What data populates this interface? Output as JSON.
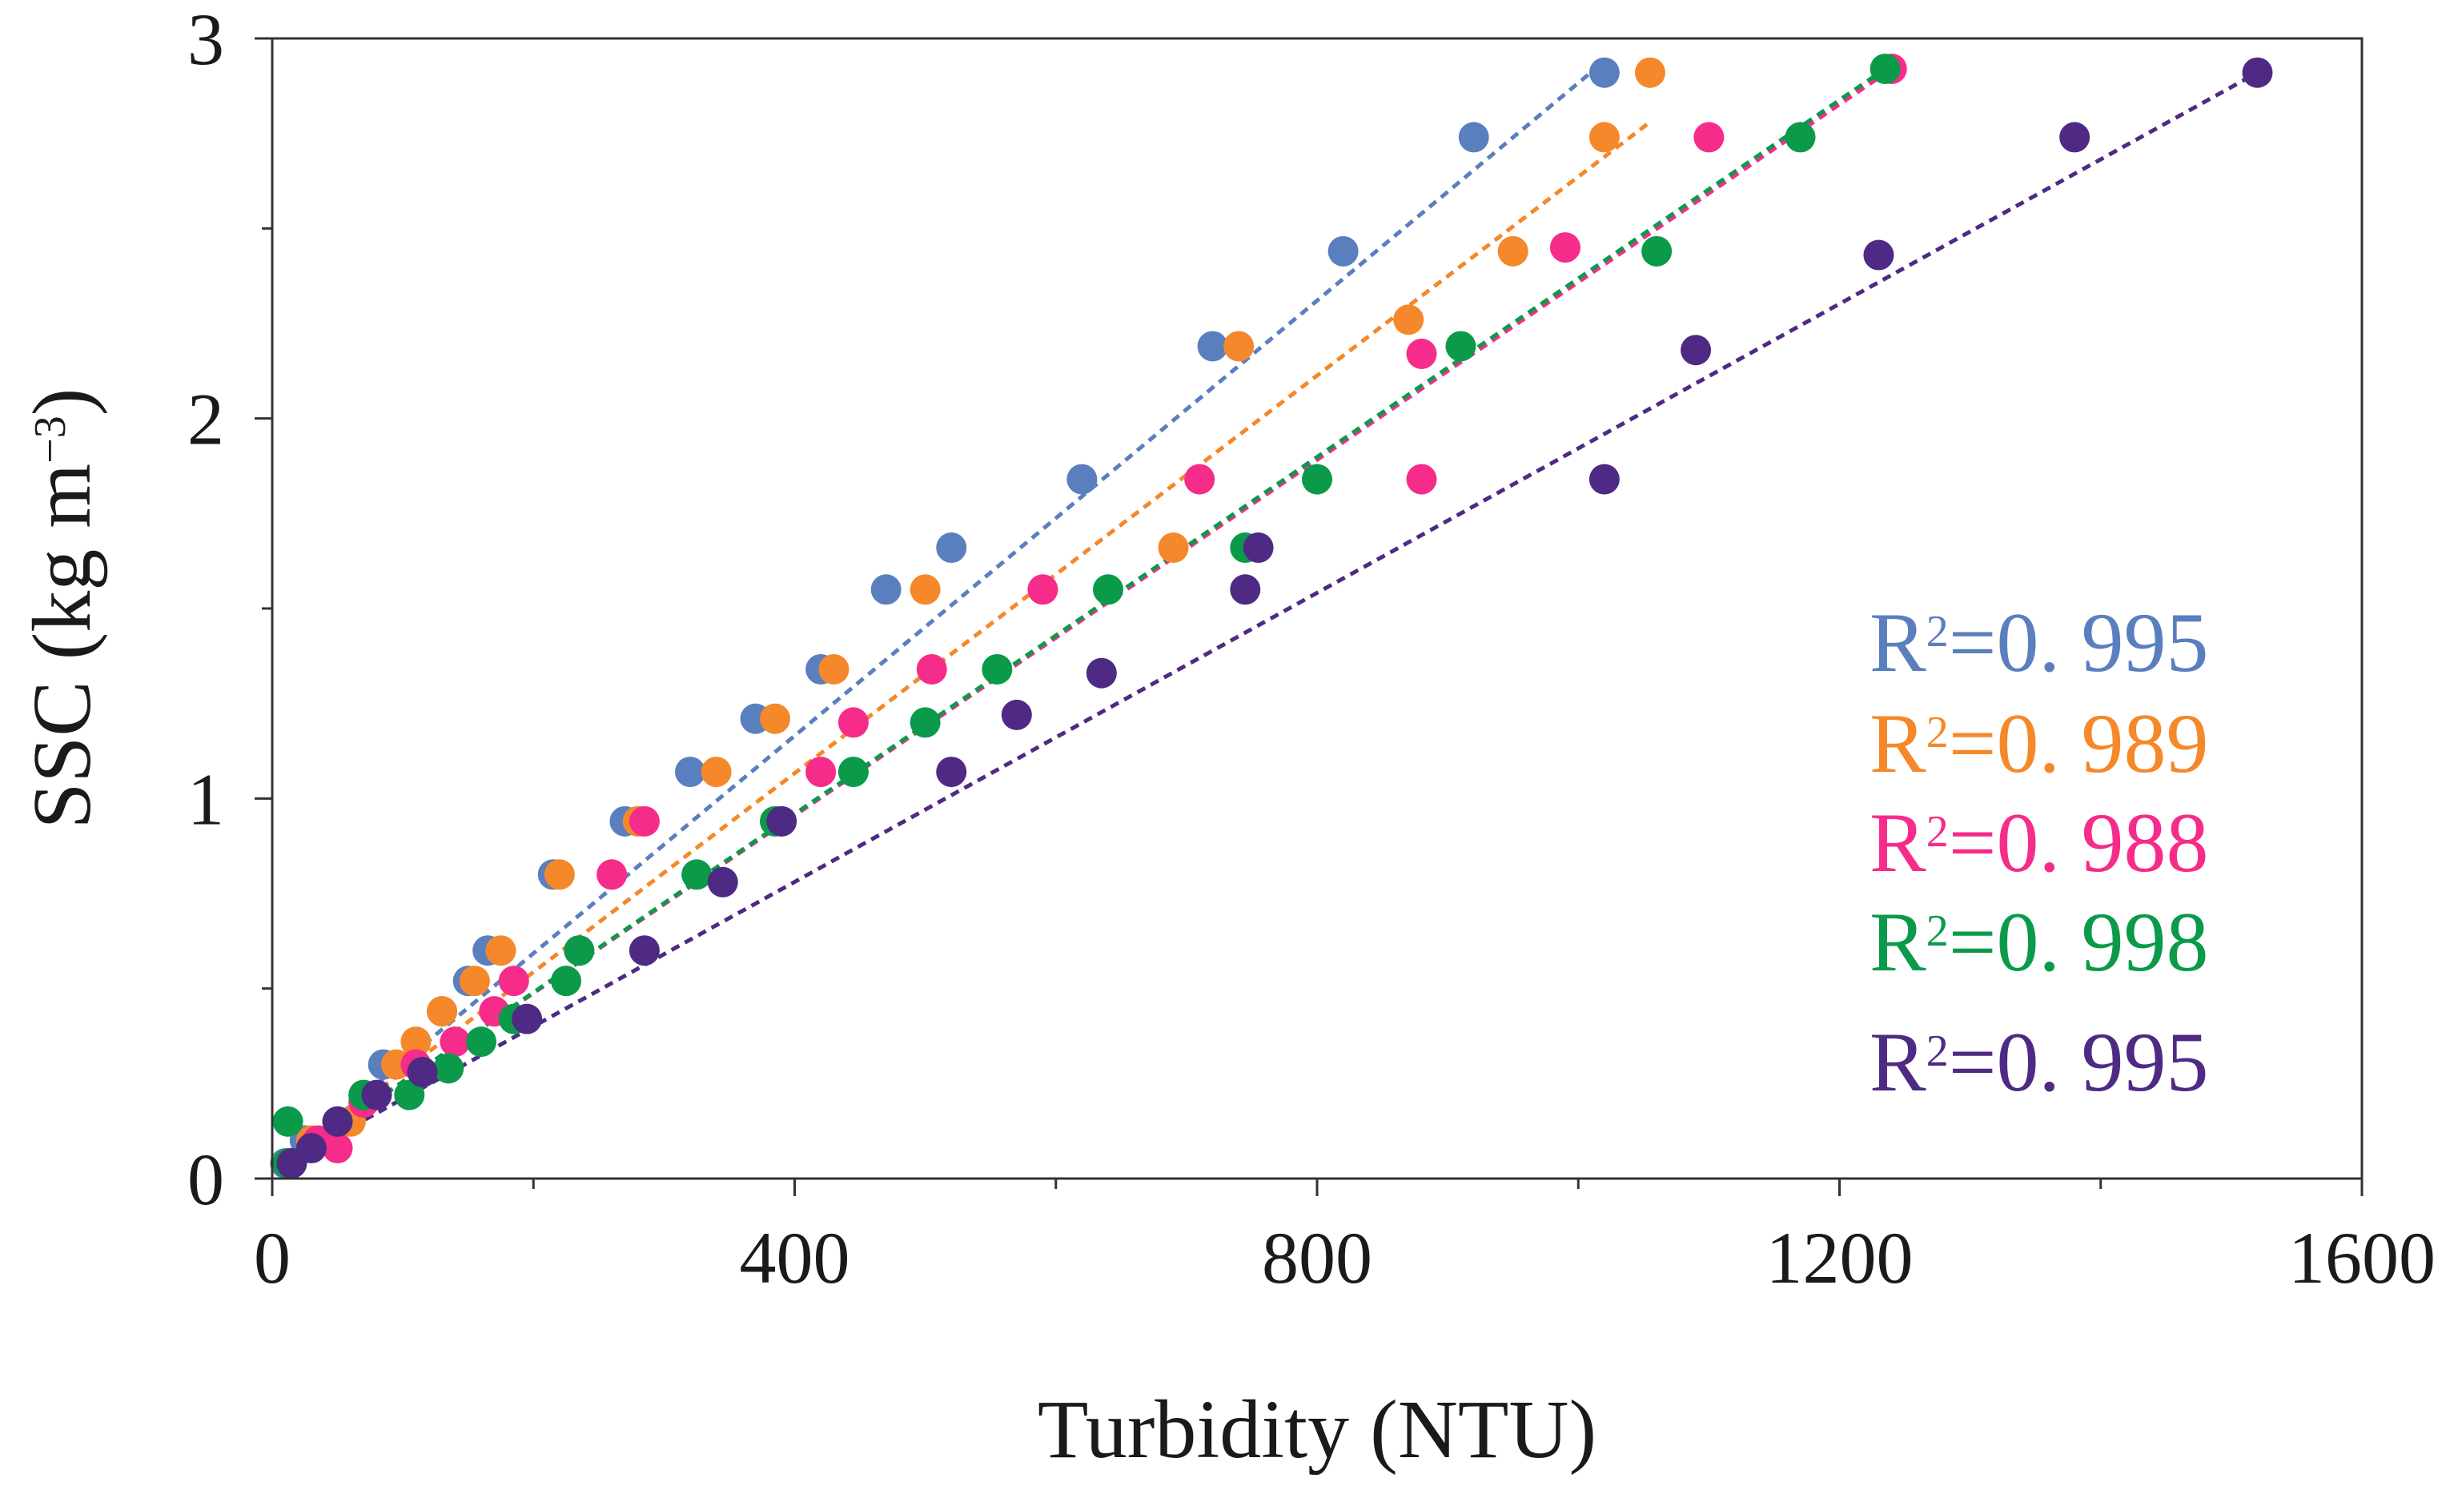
{
  "chart_data": {
    "type": "scatter",
    "title": "",
    "xlabel": "Turbidity (NTU)",
    "ylabel_main": "SSC (kg m",
    "ylabel_exp": "−3",
    "ylabel_close": ")",
    "xlim": [
      0,
      1600
    ],
    "ylim": [
      0,
      3
    ],
    "xticks": [
      0,
      400,
      800,
      1200,
      1600
    ],
    "xtick_labels": [
      "0",
      "400",
      "800",
      "1200",
      "1600"
    ],
    "xminor": [
      200,
      600,
      1000,
      1400
    ],
    "yticks": [
      0,
      1,
      2,
      3
    ],
    "ytick_labels": [
      "0",
      "1",
      "2",
      "3"
    ],
    "yminor": [
      0.5,
      1.5,
      2.5
    ],
    "grid": false,
    "legend_position": "right-center",
    "series": [
      {
        "name": "series-blue",
        "color": "#5a7fbf",
        "r2_prefix": "R",
        "r2_exp": "2",
        "r2_value": "=0. 995",
        "points": [
          [
            10,
            0.04
          ],
          [
            25,
            0.1
          ],
          [
            50,
            0.15
          ],
          [
            85,
            0.3
          ],
          [
            130,
            0.44
          ],
          [
            150,
            0.52
          ],
          [
            165,
            0.6
          ],
          [
            215,
            0.8
          ],
          [
            270,
            0.94
          ],
          [
            320,
            1.07
          ],
          [
            370,
            1.21
          ],
          [
            420,
            1.34
          ],
          [
            470,
            1.55
          ],
          [
            520,
            1.66
          ],
          [
            620,
            1.84
          ],
          [
            720,
            2.19
          ],
          [
            820,
            2.44
          ],
          [
            920,
            2.74
          ],
          [
            1020,
            2.91
          ]
        ],
        "fit": [
          [
            0,
            0.02
          ],
          [
            1020,
            2.94
          ]
        ]
      },
      {
        "name": "series-orange",
        "color": "#f5882a",
        "r2_prefix": "R",
        "r2_exp": "2",
        "r2_value": "=0. 989",
        "points": [
          [
            12,
            0.04
          ],
          [
            30,
            0.1
          ],
          [
            60,
            0.15
          ],
          [
            95,
            0.3
          ],
          [
            110,
            0.36
          ],
          [
            130,
            0.44
          ],
          [
            155,
            0.52
          ],
          [
            175,
            0.6
          ],
          [
            220,
            0.8
          ],
          [
            280,
            0.94
          ],
          [
            340,
            1.07
          ],
          [
            385,
            1.21
          ],
          [
            430,
            1.34
          ],
          [
            500,
            1.55
          ],
          [
            690,
            1.66
          ],
          [
            740,
            2.19
          ],
          [
            870,
            2.26
          ],
          [
            950,
            2.44
          ],
          [
            1020,
            2.74
          ],
          [
            1055,
            2.91
          ]
        ],
        "fit": [
          [
            0,
            0.02
          ],
          [
            1055,
            2.78
          ]
        ]
      },
      {
        "name": "series-pink",
        "color": "#f52c8a",
        "r2_prefix": "R",
        "r2_exp": "2",
        "r2_value": "=0. 988",
        "points": [
          [
            14,
            0.04
          ],
          [
            35,
            0.1
          ],
          [
            50,
            0.08
          ],
          [
            70,
            0.2
          ],
          [
            110,
            0.3
          ],
          [
            140,
            0.36
          ],
          [
            170,
            0.44
          ],
          [
            185,
            0.52
          ],
          [
            235,
            0.6
          ],
          [
            260,
            0.8
          ],
          [
            285,
            0.94
          ],
          [
            420,
            1.07
          ],
          [
            445,
            1.2
          ],
          [
            505,
            1.34
          ],
          [
            590,
            1.55
          ],
          [
            710,
            1.84
          ],
          [
            880,
            2.17
          ],
          [
            880,
            1.84
          ],
          [
            990,
            2.45
          ],
          [
            1100,
            2.74
          ],
          [
            1240,
            2.92
          ]
        ],
        "fit": [
          [
            0,
            0.02
          ],
          [
            1240,
            2.92
          ]
        ]
      },
      {
        "name": "series-green",
        "color": "#0a9a4a",
        "r2_prefix": "R",
        "r2_exp": "2",
        "r2_value": "=0. 998",
        "points": [
          [
            12,
            0.04
          ],
          [
            12,
            0.15
          ],
          [
            70,
            0.22
          ],
          [
            105,
            0.22
          ],
          [
            135,
            0.29
          ],
          [
            160,
            0.36
          ],
          [
            185,
            0.42
          ],
          [
            225,
            0.52
          ],
          [
            235,
            0.6
          ],
          [
            325,
            0.8
          ],
          [
            385,
            0.94
          ],
          [
            445,
            1.07
          ],
          [
            500,
            1.2
          ],
          [
            555,
            1.34
          ],
          [
            640,
            1.55
          ],
          [
            745,
            1.66
          ],
          [
            800,
            1.84
          ],
          [
            910,
            2.19
          ],
          [
            1060,
            2.44
          ],
          [
            1170,
            2.74
          ],
          [
            1235,
            2.92
          ]
        ],
        "fit": [
          [
            0,
            0.02
          ],
          [
            1235,
            2.92
          ]
        ]
      },
      {
        "name": "series-purple",
        "color": "#4e2a84",
        "r2_prefix": "R",
        "r2_exp": "2",
        "r2_value": "=0. 995",
        "points": [
          [
            15,
            0.04
          ],
          [
            30,
            0.08
          ],
          [
            50,
            0.15
          ],
          [
            80,
            0.22
          ],
          [
            115,
            0.28
          ],
          [
            195,
            0.42
          ],
          [
            285,
            0.6
          ],
          [
            345,
            0.78
          ],
          [
            390,
            0.94
          ],
          [
            520,
            1.07
          ],
          [
            570,
            1.22
          ],
          [
            635,
            1.33
          ],
          [
            745,
            1.55
          ],
          [
            755,
            1.66
          ],
          [
            1020,
            1.84
          ],
          [
            1090,
            2.18
          ],
          [
            1230,
            2.43
          ],
          [
            1380,
            2.74
          ],
          [
            1520,
            2.91
          ]
        ],
        "fit": [
          [
            0,
            0.02
          ],
          [
            1520,
            2.91
          ]
        ]
      }
    ]
  }
}
